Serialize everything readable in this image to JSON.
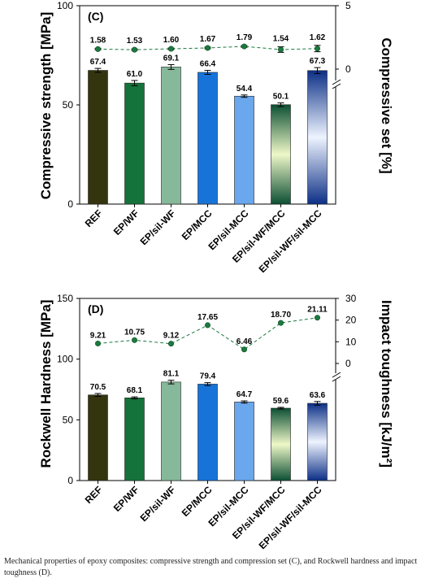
{
  "chart_data": [
    {
      "type": "bar",
      "panel_label": "(C)",
      "categories": [
        "REF",
        "EP/WF",
        "EP/sil-WF",
        "EP/MCC",
        "EP/sil-MCC",
        "EP/sil-WF/MCC",
        "EP/sil-WF/sil-MCC"
      ],
      "ylabel_left": "Compressive strength [MPa]",
      "ylabel_right": "Compressive set [%]",
      "ylim_left": [
        0,
        100
      ],
      "yticks_left": [
        "0",
        "50",
        "100"
      ],
      "ylim_right": [
        0,
        5
      ],
      "yticks_right": [
        "0",
        "5"
      ],
      "bar_series": {
        "name": "Compressive strength",
        "values": [
          67.4,
          61.0,
          69.1,
          66.4,
          54.4,
          50.1,
          67.3
        ],
        "labels": [
          "67.4",
          "61.0",
          "69.1",
          "66.4",
          "54.4",
          "50.1",
          "67.3"
        ],
        "errors": [
          1.0,
          1.3,
          1.2,
          1.0,
          0.6,
          0.9,
          1.5
        ]
      },
      "line_series": {
        "name": "Compressive set",
        "values": [
          1.58,
          1.53,
          1.6,
          1.67,
          1.79,
          1.54,
          1.62
        ],
        "labels": [
          "1.58",
          "1.53",
          "1.60",
          "1.67",
          "1.79",
          "1.54",
          "1.62"
        ],
        "errors": [
          0.06,
          0.06,
          0.06,
          0.06,
          0.07,
          0.22,
          0.25
        ]
      }
    },
    {
      "type": "bar",
      "panel_label": "(D)",
      "categories": [
        "REF",
        "EP/WF",
        "EP/sil-WF",
        "EP/MCC",
        "EP/sil-MCC",
        "EP/sil-WF/MCC",
        "EP/sil-WF/sil-MCC"
      ],
      "ylabel_left": "Rockwell Hardness [MPa]",
      "ylabel_right": "Impact toughness [kJ/m²]",
      "ylim_left": [
        0,
        150
      ],
      "yticks_left": [
        "0",
        "50",
        "100",
        "150"
      ],
      "ylim_right": [
        0,
        30
      ],
      "yticks_right": [
        "0",
        "10",
        "20",
        "30"
      ],
      "bar_series": {
        "name": "Rockwell Hardness",
        "values": [
          70.5,
          68.1,
          81.1,
          79.4,
          64.7,
          59.6,
          63.6
        ],
        "labels": [
          "70.5",
          "68.1",
          "81.1",
          "79.4",
          "64.7",
          "59.6",
          "63.6"
        ],
        "errors": [
          1.2,
          0.8,
          1.5,
          1.2,
          0.9,
          0.7,
          1.5
        ]
      },
      "line_series": {
        "name": "Impact toughness",
        "values": [
          9.21,
          10.75,
          9.12,
          17.65,
          6.46,
          18.7,
          21.11
        ],
        "labels": [
          "9.21",
          "10.75",
          "9.12",
          "17.65",
          "6.46",
          "18.70",
          "21.11"
        ]
      }
    }
  ],
  "bar_colors": [
    "#34350f",
    "#14733a",
    "#86b89a",
    "#1773d8",
    "#6aa7ec",
    "gradient-green",
    "gradient-blue"
  ],
  "line_color": "#1c7a3f",
  "caption": "Mechanical properties of epoxy composites: compressive strength and compression set (C), and Rockwell hardness and impact toughness (D)."
}
